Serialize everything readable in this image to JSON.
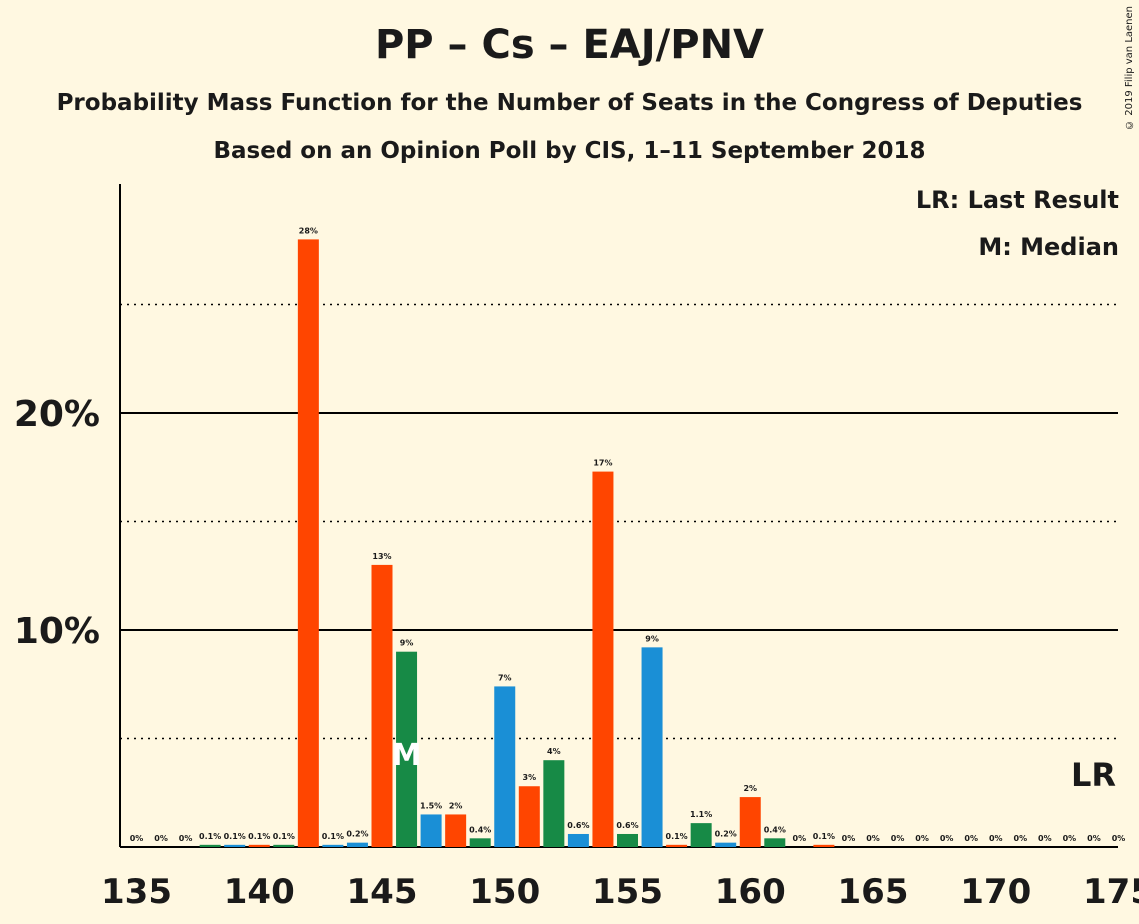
{
  "title": "PP – Cs – EAJ/PNV",
  "subtitle1": "Probability Mass Function for the Number of Seats in the Congress of Deputies",
  "subtitle2": "Based on an Opinion Poll by CIS, 1–11 September 2018",
  "copyright": "© 2019 Filip van Laenen",
  "legend": {
    "last_result": "LR: Last Result",
    "median": "M: Median"
  },
  "colors": {
    "PP": "#1A8FD6",
    "Cs": "#FF4500",
    "EAJ_PNV": "#178A46",
    "background": "#FFF8E1"
  },
  "chart_data": {
    "type": "bar",
    "x": [
      135,
      136,
      137,
      138,
      139,
      140,
      141,
      142,
      143,
      144,
      145,
      146,
      147,
      148,
      149,
      150,
      151,
      152,
      153,
      154,
      155,
      156,
      157,
      158,
      159,
      160,
      161,
      162,
      163,
      164,
      165,
      166,
      167,
      168,
      169,
      170,
      171,
      172,
      173,
      174,
      175
    ],
    "values": [
      0,
      0,
      0,
      0.1,
      0.1,
      0.1,
      0.1,
      28,
      0.1,
      0.2,
      13,
      9,
      1.5,
      1.5,
      0.4,
      7.4,
      2.8,
      4,
      0.6,
      17.3,
      0.6,
      9.2,
      0.1,
      1.1,
      0.2,
      2.3,
      0.4,
      0,
      0.1,
      0,
      0,
      0,
      0,
      0,
      0,
      0,
      0,
      0,
      0,
      0,
      0
    ],
    "labels": [
      "0%",
      "0%",
      "0%",
      "0.1%",
      "0.1%",
      "0.1%",
      "0.1%",
      "28%",
      "0.1%",
      "0.2%",
      "13%",
      "9%",
      "1.5%",
      "2%",
      "0.4%",
      "7%",
      "3%",
      "4%",
      "0.6%",
      "17%",
      "0.6%",
      "9%",
      "0.1%",
      "1.1%",
      "0.2%",
      "2%",
      "0.4%",
      "0%",
      "0.1%",
      "0%",
      "0%",
      "0%",
      "0%",
      "0%",
      "0%",
      "0%",
      "0%",
      "0%",
      "0%",
      "0%",
      "0%"
    ],
    "bar_colors": [
      "EAJ_PNV",
      "PP",
      "Cs",
      "EAJ_PNV",
      "PP",
      "Cs",
      "EAJ_PNV",
      "Cs",
      "PP",
      "PP",
      "Cs",
      "EAJ_PNV",
      "PP",
      "Cs",
      "EAJ_PNV",
      "PP",
      "Cs",
      "EAJ_PNV",
      "PP",
      "Cs",
      "EAJ_PNV",
      "PP",
      "Cs",
      "EAJ_PNV",
      "PP",
      "Cs",
      "EAJ_PNV",
      "PP",
      "Cs",
      "EAJ_PNV",
      "PP",
      "Cs",
      "EAJ_PNV",
      "PP",
      "Cs",
      "EAJ_PNV",
      "PP",
      "Cs",
      "EAJ_PNV",
      "PP",
      "Cs"
    ],
    "xticks": [
      135,
      140,
      145,
      150,
      155,
      160,
      165,
      170,
      175
    ],
    "yticks": [
      {
        "value": 10,
        "label": "10%"
      },
      {
        "value": 20,
        "label": "20%"
      }
    ],
    "ylim": [
      0,
      30.5
    ],
    "median": 146,
    "median_label": "M",
    "last_result": 175,
    "last_result_label": "LR"
  }
}
